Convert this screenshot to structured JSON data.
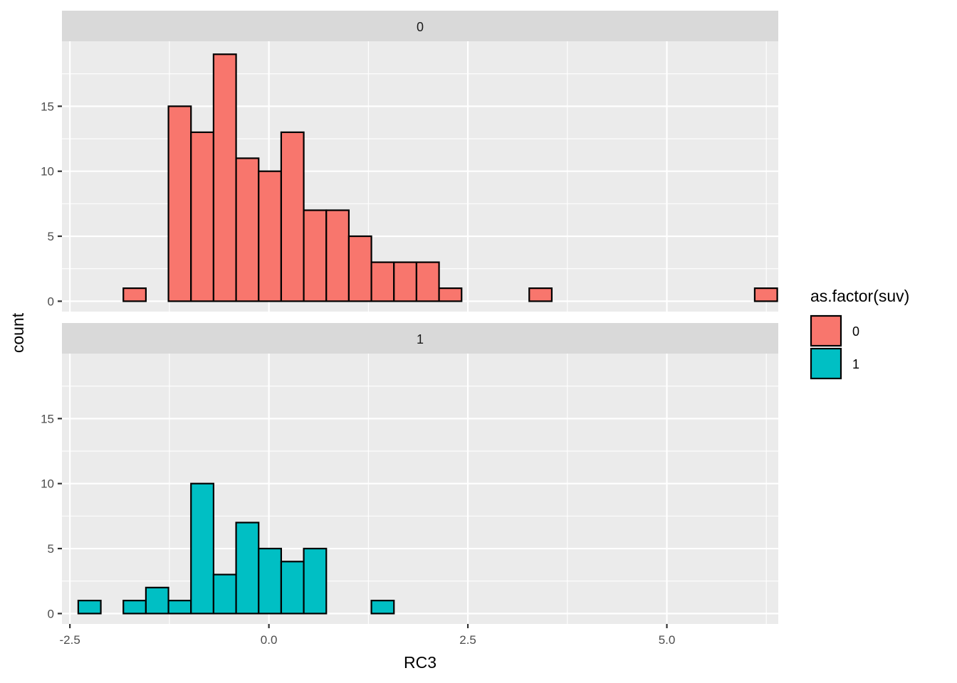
{
  "chart_data": {
    "type": "bar",
    "subtype": "faceted-histogram",
    "xlabel": "RC3",
    "ylabel": "count",
    "xlim": [
      -2.6,
      6.4
    ],
    "ylim": [
      -0.8,
      20.0
    ],
    "x_ticks": [
      -2.5,
      0.0,
      2.5,
      5.0
    ],
    "x_tick_labels": [
      "-2.5",
      "0.0",
      "2.5",
      "5.0"
    ],
    "y_ticks": [
      0,
      5,
      10,
      15
    ],
    "y_tick_labels": [
      "0",
      "5",
      "10",
      "15"
    ],
    "grid": true,
    "legend": {
      "title": "as.factor(suv)",
      "position": "right",
      "entries": [
        {
          "label": "0",
          "color": "#F8766D"
        },
        {
          "label": "1",
          "color": "#00BFC4"
        }
      ]
    },
    "bin_start": -2.395,
    "bin_width": 0.2833,
    "facets": [
      {
        "strip": "0",
        "fill": "#F8766D",
        "counts": [
          0,
          0,
          1,
          0,
          15,
          13,
          19,
          11,
          10,
          13,
          7,
          7,
          5,
          3,
          3,
          3,
          1,
          0,
          0,
          0,
          1,
          0,
          0,
          0,
          0,
          0,
          0,
          0,
          0,
          0,
          1
        ]
      },
      {
        "strip": "1",
        "fill": "#00BFC4",
        "counts": [
          1,
          0,
          1,
          2,
          1,
          10,
          3,
          7,
          5,
          4,
          5,
          0,
          0,
          1,
          0,
          0,
          0,
          0,
          0,
          0,
          0,
          0,
          0,
          0,
          0,
          0,
          0,
          0,
          0,
          0,
          0
        ]
      }
    ]
  }
}
